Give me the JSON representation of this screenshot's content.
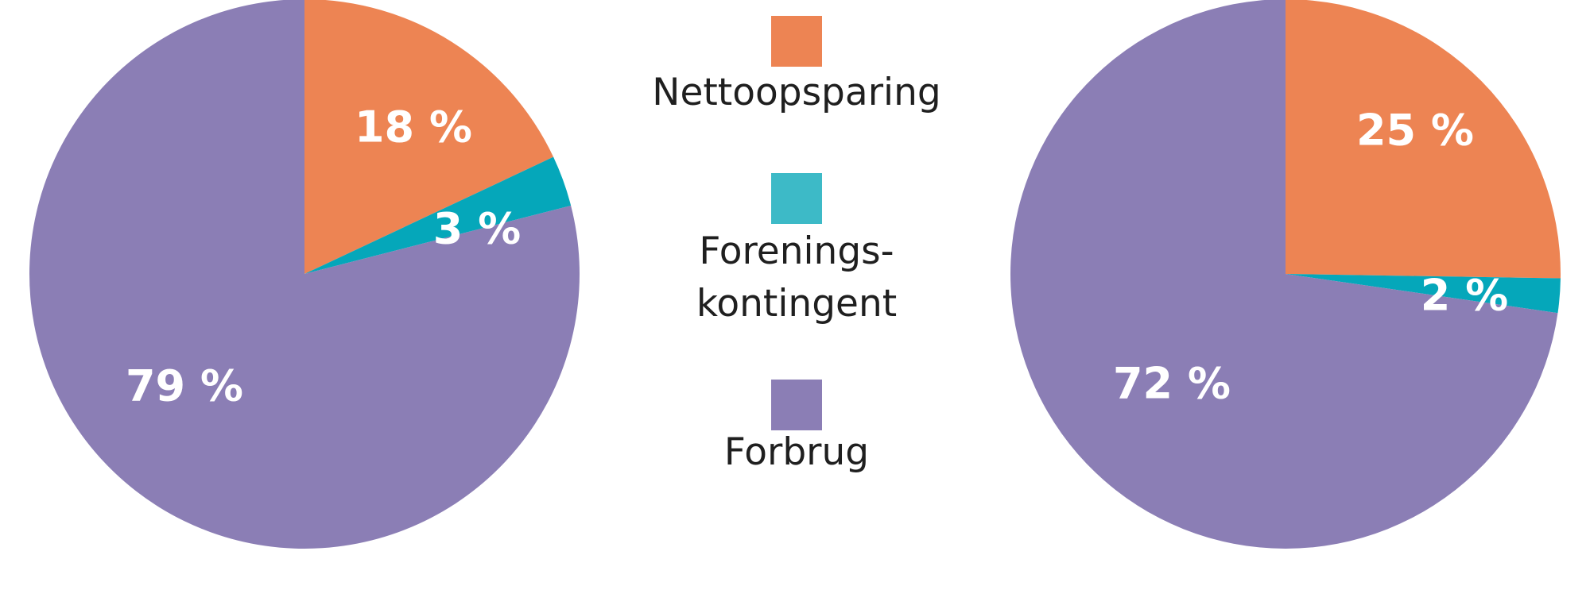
{
  "chart_data": {
    "type": "pie",
    "legend": {
      "placement": "center",
      "entries": [
        {
          "label": "Nettoopsparing",
          "color": "#ED8453"
        },
        {
          "label": "Forenings-\nkontingent",
          "color": "#3DBAC7"
        },
        {
          "label": "Forbrug",
          "color": "#8B7EB5"
        }
      ]
    },
    "series_colors": {
      "Nettoopsparing": "#ED8453",
      "Foreningskontingent": "#05A7BA",
      "Forbrug": "#8B7EB5"
    },
    "charts": [
      {
        "name": "",
        "slices": [
          {
            "category": "Nettoopsparing",
            "value": 18,
            "label": "18 %"
          },
          {
            "category": "Foreningskontingent",
            "value": 3,
            "label": "3 %"
          },
          {
            "category": "Forbrug",
            "value": 79,
            "label": "79 %"
          }
        ]
      },
      {
        "name": "",
        "slices": [
          {
            "category": "Nettoopsparing",
            "value": 25,
            "label": "25 %"
          },
          {
            "category": "Foreningskontingent",
            "value": 2,
            "label": "2 %"
          },
          {
            "category": "Forbrug",
            "value": 72,
            "label": "72 %"
          }
        ]
      }
    ]
  }
}
